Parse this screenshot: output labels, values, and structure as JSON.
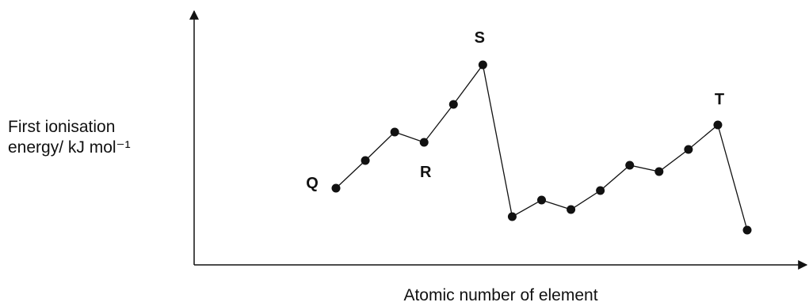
{
  "chart_data": {
    "type": "line",
    "ylabel": [
      "First ionisation",
      "energy/ kJ mol⁻¹"
    ],
    "xlabel": "Atomic number of element",
    "categories": [
      null,
      null,
      null,
      null,
      null,
      null,
      null,
      null,
      null,
      null,
      null,
      null,
      null,
      null,
      null
    ],
    "series": [
      {
        "name": null,
        "color": "#111111",
        "values": [
          97,
          132,
          168,
          155,
          203,
          253,
          61,
          82,
          70,
          94,
          126,
          118,
          146,
          177,
          44
        ]
      }
    ],
    "ylim": [
      0,
      320
    ],
    "annotations": [
      {
        "text": "Q",
        "point": 0
      },
      {
        "text": "R",
        "point": 3
      },
      {
        "text": "S",
        "point": 5
      },
      {
        "text": "T",
        "point": 13
      }
    ]
  }
}
